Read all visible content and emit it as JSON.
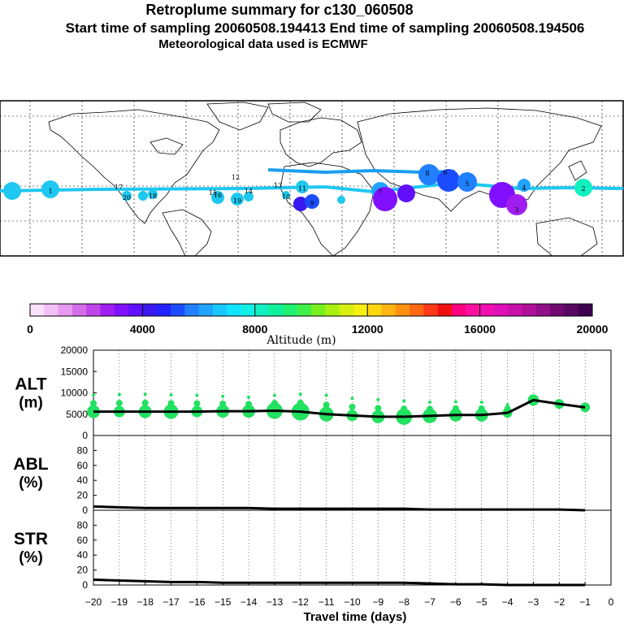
{
  "header": {
    "title": "Retroplume summary for c130_060508",
    "sampling_line": "Start time of sampling 20060508.194413     End time of sampling 20060508.194506",
    "met_line": "Meteorological data used is ECMWF"
  },
  "colors": {
    "trajectory": "#1ec8f0",
    "plume_low": "#5050ff",
    "plume_mid": "#2090ff",
    "plume_high": "#8010ff",
    "alt_dots": "#22e060",
    "line": "#000000"
  },
  "chart_data": [
    {
      "type": "map",
      "name": "trajectory-map",
      "track_labels": [
        "1",
        "2",
        "3",
        "4",
        "5",
        "6",
        "7",
        "8",
        "9",
        "10",
        "11",
        "12",
        "13",
        "14",
        "15",
        "16",
        "17",
        "18",
        "19",
        "20"
      ]
    },
    {
      "type": "colorbar",
      "name": "altitude-colorbar",
      "title": "Altitude (m)",
      "ticks": [
        "0",
        "4000",
        "8000",
        "12000",
        "16000",
        "20000"
      ],
      "range": [
        0,
        20000
      ],
      "colors": [
        "#fbe0fb",
        "#f2c0f5",
        "#e69af0",
        "#d46eea",
        "#bf45ea",
        "#a01ef0",
        "#8010ff",
        "#6010ff",
        "#3a18f0",
        "#2222ff",
        "#1c4cff",
        "#2080ff",
        "#20a4ff",
        "#18c8ff",
        "#10e4ff",
        "#10f0e8",
        "#10f0c0",
        "#10f09a",
        "#20f070",
        "#40f048",
        "#78f020",
        "#a8f010",
        "#d8f010",
        "#f8f010",
        "#ffd810",
        "#ffb410",
        "#ff9010",
        "#ff6810",
        "#ff3818",
        "#f01010",
        "#ff0080",
        "#ff10a0",
        "#f010b0",
        "#e010b8",
        "#c810a8",
        "#b01098",
        "#901088",
        "#700870",
        "#580860",
        "#400050"
      ]
    },
    {
      "type": "line",
      "name": "ALT",
      "label_top": "ALT",
      "label_bottom": "(m)",
      "yticks": [
        "0",
        "5000",
        "10000",
        "15000",
        "20000"
      ],
      "ylim": [
        0,
        20000
      ],
      "x": [
        -20,
        -19,
        -18,
        -17,
        -16,
        -15,
        -14,
        -13,
        -12,
        -11,
        -10,
        -9,
        -8,
        -7,
        -6,
        -5,
        -4,
        -3,
        -2,
        -1
      ],
      "values": [
        5600,
        5600,
        5600,
        5600,
        5600,
        5700,
        5700,
        5800,
        5600,
        5000,
        4700,
        4400,
        4400,
        4600,
        4800,
        4800,
        5300,
        8300,
        7400,
        6600
      ],
      "dot_sizes": [
        8,
        7,
        8,
        9,
        7,
        8,
        8,
        10,
        11,
        9,
        7,
        8,
        10,
        9,
        8,
        8,
        6,
        7,
        6,
        6
      ],
      "dots_high": [
        9500,
        9600,
        9700,
        9500,
        9400,
        9200,
        9000,
        9400,
        9700,
        9400,
        8700,
        8400,
        8100,
        7800,
        7900,
        7800,
        7200,
        0,
        0,
        0
      ]
    },
    {
      "type": "line",
      "name": "ABL",
      "label_top": "ABL",
      "label_bottom": "(%)",
      "yticks": [
        "0",
        "20",
        "40",
        "60",
        "80"
      ],
      "ylim": [
        0,
        100
      ],
      "x": [
        -20,
        -19,
        -18,
        -17,
        -16,
        -15,
        -14,
        -13,
        -12,
        -11,
        -10,
        -9,
        -8,
        -7,
        -6,
        -5,
        -4,
        -3,
        -2,
        -1
      ],
      "values": [
        5,
        4,
        3,
        3,
        3,
        3,
        3,
        2,
        2,
        2,
        2,
        2,
        2,
        1,
        1,
        1,
        1,
        1,
        1,
        0
      ]
    },
    {
      "type": "line",
      "name": "STR",
      "label_top": "STR",
      "label_bottom": "(%)",
      "yticks": [
        "0",
        "20",
        "40",
        "60",
        "80"
      ],
      "ylim": [
        0,
        100
      ],
      "x": [
        -20,
        -19,
        -18,
        -17,
        -16,
        -15,
        -14,
        -13,
        -12,
        -11,
        -10,
        -9,
        -8,
        -7,
        -6,
        -5,
        -4,
        -3,
        -2,
        -1
      ],
      "values": [
        7,
        6,
        5,
        4,
        4,
        3,
        3,
        3,
        3,
        3,
        3,
        3,
        3,
        2,
        1,
        1,
        0,
        0,
        0,
        0
      ]
    }
  ],
  "xaxis": {
    "label": "Travel time (days)",
    "ticks": [
      "−20",
      "−19",
      "−18",
      "−17",
      "−16",
      "−15",
      "−14",
      "−13",
      "−12",
      "−11",
      "−10",
      "−9",
      "−8",
      "−7",
      "−6",
      "−5",
      "−4",
      "−3",
      "−2",
      "−1",
      "0"
    ],
    "range": [
      -20,
      0
    ]
  }
}
